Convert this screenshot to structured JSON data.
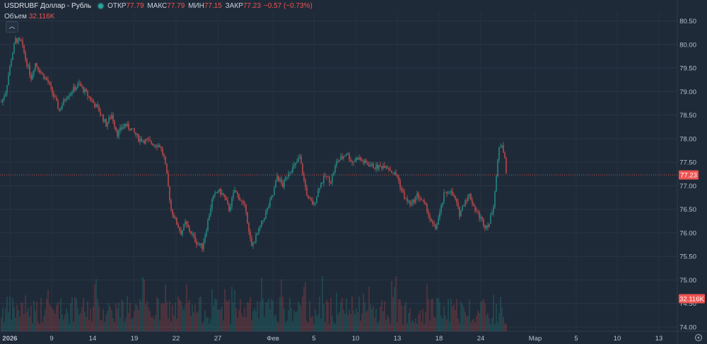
{
  "legend": {
    "symbol": "USDRUBF Доллар - Рубль",
    "open_label": "ОТКР",
    "open": "77.79",
    "high_label": "МАКС",
    "high": "77.79",
    "low_label": "МИН",
    "low": "77.15",
    "close_label": "ЗАКР",
    "close": "77.23",
    "change": "−0.57 (−0.73%)"
  },
  "volume_legend": {
    "label": "Объем",
    "value": "32.116K"
  },
  "colors": {
    "up": "#26a69a",
    "down": "#ef5350",
    "background": "#1f2a38",
    "grid": "#2a3646"
  },
  "icons": {
    "collapse": "chevron-up-icon",
    "settings": "gear-icon"
  },
  "chart_data": {
    "type": "candlestick",
    "x_ticks": [
      "2026",
      "9",
      "14",
      "19",
      "22",
      "27",
      "Фев",
      "5",
      "10",
      "13",
      "18",
      "24",
      "Мар",
      "5",
      "10",
      "13"
    ],
    "y_ticks": [
      "80.50",
      "80.00",
      "79.50",
      "79.00",
      "78.50",
      "78.00",
      "77.50",
      "77.00",
      "76.50",
      "76.00",
      "75.50",
      "75.00",
      "74.50",
      "74.00"
    ],
    "ylim": [
      73.95,
      80.7
    ],
    "last_price": "77.23",
    "last_volume": "32.116K",
    "price_path": [
      [
        0,
        78.7
      ],
      [
        8,
        79.0
      ],
      [
        16,
        79.7
      ],
      [
        22,
        80.1
      ],
      [
        30,
        80.05
      ],
      [
        36,
        79.7
      ],
      [
        44,
        79.3
      ],
      [
        50,
        79.6
      ],
      [
        58,
        79.4
      ],
      [
        68,
        79.2
      ],
      [
        76,
        78.9
      ],
      [
        84,
        78.6
      ],
      [
        94,
        78.9
      ],
      [
        104,
        79.05
      ],
      [
        112,
        79.15
      ],
      [
        120,
        79.0
      ],
      [
        130,
        78.8
      ],
      [
        140,
        78.6
      ],
      [
        150,
        78.3
      ],
      [
        158,
        78.5
      ],
      [
        166,
        78.1
      ],
      [
        176,
        78.3
      ],
      [
        186,
        78.2
      ],
      [
        196,
        78.0
      ],
      [
        206,
        77.95
      ],
      [
        216,
        77.9
      ],
      [
        226,
        77.85
      ],
      [
        232,
        77.6
      ],
      [
        236,
        77.2
      ],
      [
        242,
        76.5
      ],
      [
        250,
        76.2
      ],
      [
        256,
        76.0
      ],
      [
        262,
        76.2
      ],
      [
        270,
        76.0
      ],
      [
        278,
        75.8
      ],
      [
        286,
        75.7
      ],
      [
        292,
        76.1
      ],
      [
        300,
        76.7
      ],
      [
        308,
        76.9
      ],
      [
        316,
        76.8
      ],
      [
        324,
        76.5
      ],
      [
        332,
        76.9
      ],
      [
        340,
        76.7
      ],
      [
        348,
        76.5
      ],
      [
        352,
        76.0
      ],
      [
        356,
        75.7
      ],
      [
        362,
        75.9
      ],
      [
        370,
        76.2
      ],
      [
        378,
        76.5
      ],
      [
        386,
        76.8
      ],
      [
        392,
        77.2
      ],
      [
        400,
        77.0
      ],
      [
        408,
        77.3
      ],
      [
        416,
        77.4
      ],
      [
        424,
        77.6
      ],
      [
        430,
        77.1
      ],
      [
        436,
        76.7
      ],
      [
        444,
        76.6
      ],
      [
        452,
        77.0
      ],
      [
        460,
        77.2
      ],
      [
        468,
        77.1
      ],
      [
        476,
        77.5
      ],
      [
        484,
        77.6
      ],
      [
        490,
        77.7
      ],
      [
        498,
        77.5
      ],
      [
        506,
        77.6
      ],
      [
        514,
        77.5
      ],
      [
        522,
        77.45
      ],
      [
        530,
        77.4
      ],
      [
        538,
        77.4
      ],
      [
        546,
        77.45
      ],
      [
        554,
        77.3
      ],
      [
        562,
        77.2
      ],
      [
        568,
        76.9
      ],
      [
        574,
        76.7
      ],
      [
        582,
        76.6
      ],
      [
        590,
        76.8
      ],
      [
        596,
        76.7
      ],
      [
        604,
        76.5
      ],
      [
        610,
        76.2
      ],
      [
        616,
        76.1
      ],
      [
        622,
        76.4
      ],
      [
        628,
        76.8
      ],
      [
        636,
        76.9
      ],
      [
        644,
        76.7
      ],
      [
        650,
        76.4
      ],
      [
        658,
        76.7
      ],
      [
        664,
        76.8
      ],
      [
        672,
        76.5
      ],
      [
        680,
        76.3
      ],
      [
        686,
        76.15
      ],
      [
        692,
        76.2
      ],
      [
        698,
        76.6
      ],
      [
        702,
        77.2
      ],
      [
        706,
        77.8
      ],
      [
        710,
        77.9
      ],
      [
        714,
        77.6
      ],
      [
        716,
        77.23
      ]
    ]
  }
}
